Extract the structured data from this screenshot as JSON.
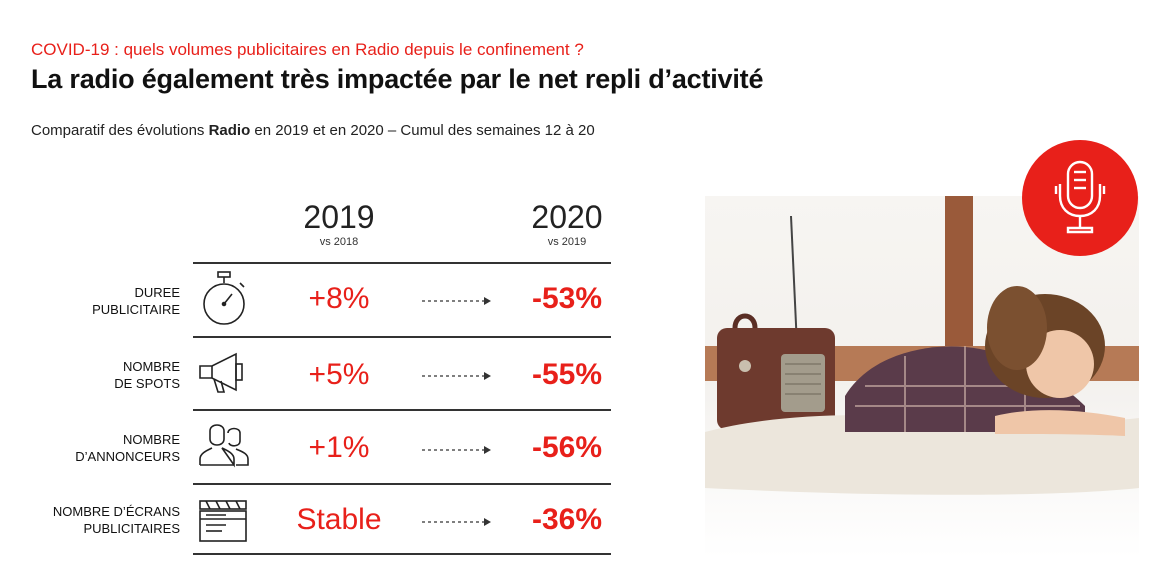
{
  "header": {
    "kicker": "COVID-19 : quels volumes publicitaires en Radio depuis le confinement ?",
    "title": "La radio également très impactée par le net repli d’activité",
    "subtitle_pre": "Comparatif des évolutions ",
    "subtitle_bold": "Radio",
    "subtitle_post": " en 2019 et en 2020 – Cumul des semaines 12 à 20"
  },
  "columns": [
    {
      "year": "2019",
      "vs": "vs 2018"
    },
    {
      "year": "2020",
      "vs": "vs 2019"
    }
  ],
  "rows": [
    {
      "label_line1": "DUREE",
      "label_line2": "PUBLICITAIRE",
      "icon": "stopwatch-icon",
      "v2019": "+8%",
      "v2020": "-53%"
    },
    {
      "label_line1": "NOMBRE",
      "label_line2": "DE SPOTS",
      "icon": "megaphone-icon",
      "v2019": "+5%",
      "v2020": "-55%"
    },
    {
      "label_line1": "NOMBRE",
      "label_line2": "D’ANNONCEURS",
      "icon": "people-icon",
      "v2019": "+1%",
      "v2020": "-56%"
    },
    {
      "label_line1": "NOMBRE D’ÉCRANS",
      "label_line2": "PUBLICITAIRES",
      "icon": "clapperboard-icon",
      "v2019": "Stable",
      "v2020": "-36%"
    }
  ],
  "colors": {
    "accent": "#e8201a",
    "text": "#222222"
  },
  "badge_icon": "microphone-icon",
  "photo": "woman-lying-next-to-vintage-radio"
}
